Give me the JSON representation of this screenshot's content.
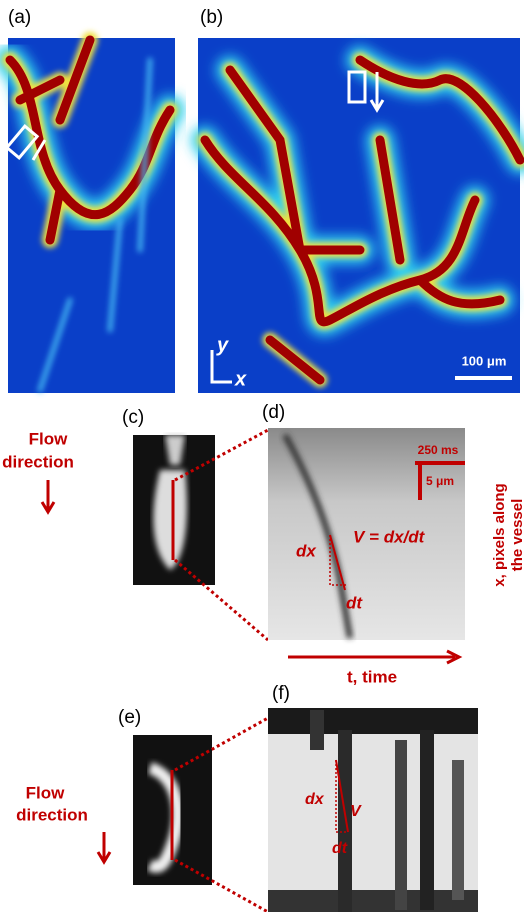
{
  "panels": {
    "a": "(a)",
    "b": "(b)",
    "c": "(c)",
    "d": "(d)",
    "e": "(e)",
    "f": "(f)"
  },
  "panel_b": {
    "axis_y": "y",
    "axis_x": "x",
    "scale_bar": "100 μm"
  },
  "panel_c": {
    "flow_line1": "Flow",
    "flow_line2": "direction"
  },
  "panel_d": {
    "time_bar": "250 ms",
    "space_bar": "5 μm",
    "formula": "V = dx/dt",
    "dx": "dx",
    "dt": "dt",
    "x_axis": "t, time",
    "y_axis_line1": "x, pixels along",
    "y_axis_line2": "the vessel"
  },
  "panel_e": {
    "flow_line1": "Flow",
    "flow_line2": "direction"
  },
  "panel_f": {
    "dx": "dx",
    "v": "V",
    "dt": "dt"
  }
}
